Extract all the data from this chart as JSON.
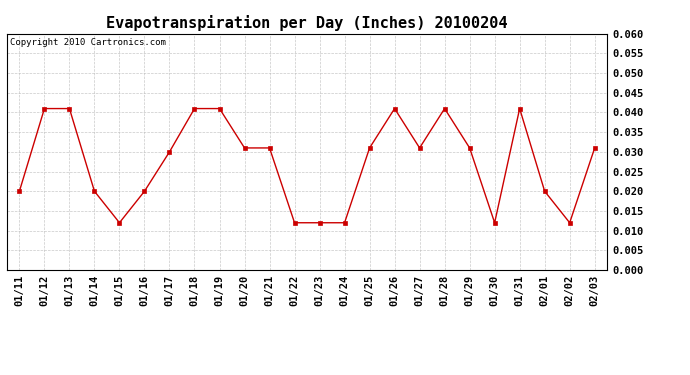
{
  "title": "Evapotranspiration per Day (Inches) 20100204",
  "copyright_text": "Copyright 2010 Cartronics.com",
  "x_labels": [
    "01/11",
    "01/12",
    "01/13",
    "01/14",
    "01/15",
    "01/16",
    "01/17",
    "01/18",
    "01/19",
    "01/20",
    "01/21",
    "01/22",
    "01/23",
    "01/24",
    "01/25",
    "01/26",
    "01/27",
    "01/28",
    "01/29",
    "01/30",
    "01/31",
    "02/01",
    "02/02",
    "02/03"
  ],
  "y_values": [
    0.02,
    0.041,
    0.041,
    0.02,
    0.012,
    0.02,
    0.03,
    0.041,
    0.041,
    0.031,
    0.031,
    0.012,
    0.012,
    0.012,
    0.031,
    0.041,
    0.031,
    0.041,
    0.031,
    0.012,
    0.041,
    0.02,
    0.012,
    0.031
  ],
  "line_color": "#cc0000",
  "marker": "s",
  "marker_size": 2.5,
  "ylim": [
    0.0,
    0.06
  ],
  "yticks": [
    0.0,
    0.005,
    0.01,
    0.015,
    0.02,
    0.025,
    0.03,
    0.035,
    0.04,
    0.045,
    0.05,
    0.055,
    0.06
  ],
  "background_color": "#ffffff",
  "grid_color": "#bbbbbb",
  "title_fontsize": 11,
  "tick_fontsize": 7.5,
  "copyright_fontsize": 6.5
}
